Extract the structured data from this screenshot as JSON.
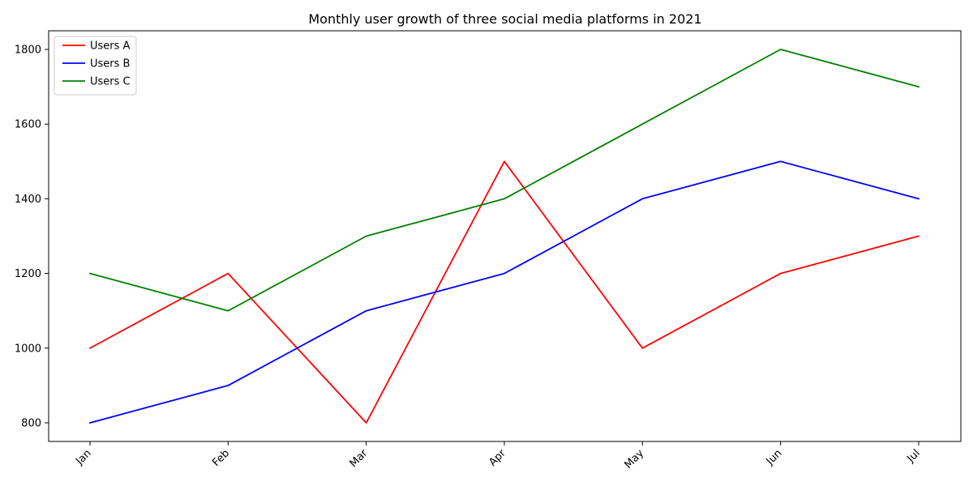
{
  "chart_data": {
    "type": "line",
    "title": "Monthly user growth of three social media platforms in 2021",
    "xlabel": "",
    "ylabel": "",
    "categories": [
      "Jan",
      "Feb",
      "Mar",
      "Apr",
      "May",
      "Jun",
      "Jul"
    ],
    "yticks": [
      800,
      1000,
      1200,
      1400,
      1600,
      1800
    ],
    "ylim": [
      750,
      1850
    ],
    "grid": false,
    "legend_position": "top-left",
    "series": [
      {
        "name": "Users A",
        "color": "#ff0000",
        "values": [
          1000,
          1200,
          800,
          1500,
          1000,
          1200,
          1300
        ]
      },
      {
        "name": "Users B",
        "color": "#0000ff",
        "values": [
          800,
          900,
          1100,
          1200,
          1400,
          1500,
          1400
        ]
      },
      {
        "name": "Users C",
        "color": "#008000",
        "values": [
          1200,
          1100,
          1300,
          1400,
          1600,
          1800,
          1700
        ]
      }
    ]
  }
}
